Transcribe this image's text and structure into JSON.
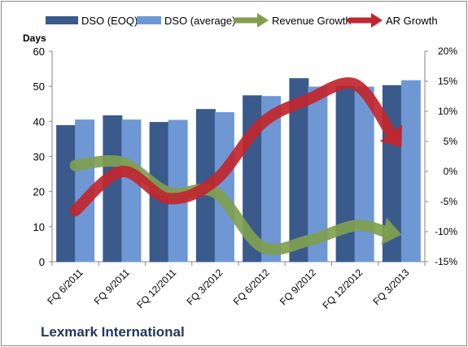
{
  "chart_data": {
    "type": "bar",
    "categories": [
      "FQ 6/2011",
      "FQ 9/2011",
      "FQ 12/2011",
      "FQ 3/2012",
      "FQ 6/2012",
      "FQ 9/2012",
      "FQ 12/2012",
      "FQ 3/2013"
    ],
    "series": [
      {
        "name": "DSO (EOQ)",
        "type": "bar",
        "axis": "left",
        "color": "#3a5a8c",
        "values": [
          38.8,
          41.6,
          39.7,
          43.4,
          47.3,
          52.2,
          50.0,
          50.2
        ]
      },
      {
        "name": "DSO (average)",
        "type": "bar",
        "axis": "left",
        "color": "#6f97d4",
        "values": [
          40.4,
          40.4,
          40.3,
          42.5,
          47.1,
          49.8,
          49.8,
          51.6
        ]
      },
      {
        "name": "Revenue Growth",
        "type": "arrow-line",
        "axis": "right",
        "color": "#7f9f4f",
        "values": [
          1.0,
          1.5,
          -3.5,
          -3.5,
          -12.5,
          -11.5,
          -9.0,
          -10.5
        ]
      },
      {
        "name": "AR Growth",
        "type": "arrow-line",
        "axis": "right",
        "color": "#c0262d",
        "values": [
          -6.5,
          0.0,
          -4.5,
          -1.5,
          8.0,
          12.0,
          14.5,
          4.0
        ]
      }
    ],
    "ylabel": "Days",
    "ylim": [
      0,
      60
    ],
    "yticks": [
      "0",
      "10",
      "20",
      "30",
      "40",
      "50",
      "60"
    ],
    "y2lim": [
      -15,
      20
    ],
    "y2ticks": [
      "-15%",
      "-10%",
      "-5%",
      "0%",
      "5%",
      "10%",
      "15%",
      "20%"
    ],
    "legend_position": "top",
    "grid": false
  },
  "footer": {
    "company": "Lexmark International"
  }
}
